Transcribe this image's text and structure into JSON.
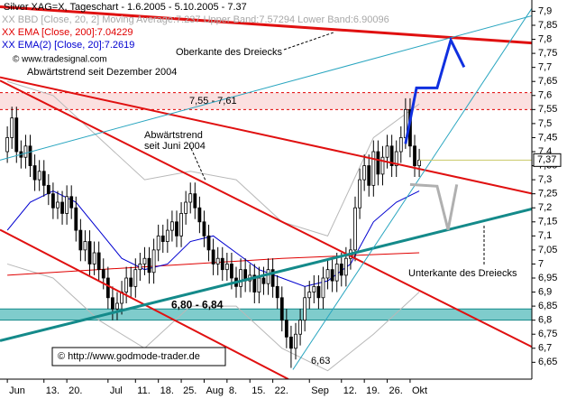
{
  "chart_data": {
    "type": "candlestick",
    "title": "Silver XAG=X, Tageschart - 1.6.2005 - 5.10.2005 - 7.37",
    "legend": [
      {
        "text": "XX BBD [Close, 20, 2] Moving Average:7.237 Upper Band:7.57294 Lower Band:6.90096",
        "color": "#a8a8a8"
      },
      {
        "text": "XX EMA [Close, 200]:7.04229",
        "color": "#e00000"
      },
      {
        "text": "XX EMA(2) [Close, 20]:7.2619",
        "color": "#0000d0"
      }
    ],
    "open": [
      7.4,
      7.45,
      7.52,
      7.4,
      7.38,
      7.42,
      7.35,
      7.3,
      7.33,
      7.28,
      7.25,
      7.2,
      7.22,
      7.18,
      7.24,
      7.2,
      7.12,
      7.05,
      7.08,
      7.0,
      7.04,
      6.98,
      6.95,
      6.88,
      6.84,
      6.86,
      6.9,
      6.95,
      6.92,
      6.98,
      7.0,
      7.02,
      6.97,
      7.05,
      7.1,
      7.08,
      7.12,
      7.15,
      7.1,
      7.18,
      7.22,
      7.25,
      7.2,
      7.15,
      7.1,
      7.05,
      7.0,
      7.02,
      6.98,
      7.0,
      6.95,
      6.92,
      6.98,
      6.94,
      6.96,
      6.9,
      6.95,
      6.93,
      6.98,
      6.92,
      6.88,
      6.8,
      6.74,
      6.7,
      6.75,
      6.8,
      6.88,
      6.9,
      6.92,
      6.88,
      6.95,
      6.98,
      6.94,
      7.0,
      6.96,
      7.02,
      7.05,
      7.2,
      7.3,
      7.35,
      7.28,
      7.4,
      7.32,
      7.38,
      7.42,
      7.35,
      7.4,
      7.45,
      7.55,
      7.42,
      7.35
    ],
    "high": [
      7.49,
      7.56,
      7.56,
      7.44,
      7.46,
      7.46,
      7.39,
      7.37,
      7.37,
      7.32,
      7.29,
      7.26,
      7.26,
      7.28,
      7.28,
      7.24,
      7.16,
      7.12,
      7.12,
      7.08,
      7.08,
      7.02,
      6.99,
      6.92,
      6.9,
      6.94,
      6.99,
      6.99,
      7.02,
      7.04,
      7.06,
      7.06,
      7.09,
      7.14,
      7.14,
      7.16,
      7.19,
      7.19,
      7.22,
      7.26,
      7.29,
      7.29,
      7.24,
      7.19,
      7.14,
      7.09,
      7.06,
      7.06,
      7.04,
      7.04,
      6.99,
      7.02,
      7.02,
      7.0,
      7.0,
      6.99,
      6.99,
      7.02,
      7.02,
      6.96,
      6.92,
      6.84,
      6.78,
      6.79,
      6.84,
      6.92,
      6.94,
      6.96,
      6.96,
      6.99,
      7.02,
      7.02,
      7.04,
      7.04,
      7.06,
      7.09,
      7.24,
      7.34,
      7.39,
      7.39,
      7.44,
      7.44,
      7.42,
      7.46,
      7.46,
      7.44,
      7.49,
      7.59,
      7.59,
      7.46,
      7.41
    ],
    "low": [
      7.36,
      7.41,
      7.36,
      7.34,
      7.34,
      7.31,
      7.26,
      7.26,
      7.24,
      7.21,
      7.16,
      7.16,
      7.14,
      7.14,
      7.16,
      7.08,
      7.01,
      7.01,
      6.96,
      6.96,
      6.94,
      6.91,
      6.84,
      6.8,
      6.8,
      6.82,
      6.86,
      6.88,
      6.88,
      6.94,
      6.96,
      6.93,
      6.93,
      7.01,
      7.04,
      7.04,
      7.08,
      7.06,
      7.06,
      7.14,
      7.18,
      7.16,
      7.11,
      7.06,
      7.01,
      6.96,
      6.96,
      6.94,
      6.94,
      6.91,
      6.88,
      6.88,
      6.9,
      6.9,
      6.86,
      6.86,
      6.89,
      6.89,
      6.88,
      6.84,
      6.76,
      6.7,
      6.63,
      6.66,
      6.71,
      6.76,
      6.84,
      6.86,
      6.84,
      6.84,
      6.91,
      6.9,
      6.9,
      6.92,
      6.92,
      6.98,
      7.01,
      7.16,
      7.26,
      7.24,
      7.24,
      7.28,
      7.28,
      7.34,
      7.31,
      7.31,
      7.36,
      7.41,
      7.38,
      7.31,
      7.31
    ],
    "close": [
      7.45,
      7.52,
      7.4,
      7.38,
      7.42,
      7.35,
      7.3,
      7.33,
      7.28,
      7.25,
      7.2,
      7.22,
      7.18,
      7.24,
      7.2,
      7.12,
      7.05,
      7.08,
      7.0,
      7.04,
      6.98,
      6.95,
      6.88,
      6.84,
      6.86,
      6.9,
      6.95,
      6.92,
      6.98,
      7.0,
      7.02,
      6.97,
      7.05,
      7.1,
      7.08,
      7.12,
      7.15,
      7.1,
      7.18,
      7.22,
      7.25,
      7.2,
      7.15,
      7.1,
      7.05,
      7.0,
      7.02,
      6.98,
      7.0,
      6.95,
      6.92,
      6.98,
      6.94,
      6.96,
      6.9,
      6.95,
      6.93,
      6.98,
      6.92,
      6.88,
      6.8,
      6.74,
      6.7,
      6.75,
      6.8,
      6.88,
      6.9,
      6.92,
      6.88,
      6.95,
      6.98,
      6.94,
      7.0,
      6.96,
      7.02,
      7.05,
      7.2,
      7.3,
      7.35,
      7.28,
      7.4,
      7.32,
      7.38,
      7.42,
      7.35,
      7.4,
      7.45,
      7.55,
      7.42,
      7.35,
      7.37
    ],
    "indicators": [
      {
        "color": "#b8b8b8",
        "x": [
          0,
          10,
          20,
          30,
          40,
          50,
          60,
          70,
          80,
          90
        ],
        "values": [
          7.65,
          7.6,
          7.45,
          7.3,
          7.33,
          7.3,
          7.15,
          7.1,
          7.45,
          7.57
        ]
      },
      {
        "color": "#b8b8b8",
        "x": [
          0,
          10,
          20,
          30,
          40,
          50,
          60,
          70,
          80,
          90
        ],
        "values": [
          7.0,
          6.95,
          6.8,
          6.7,
          6.85,
          6.85,
          6.7,
          6.62,
          6.75,
          6.9
        ]
      },
      {
        "color": "#e00000",
        "x": [
          0,
          20,
          40,
          60,
          90
        ],
        "values": [
          6.96,
          6.98,
          7.0,
          7.02,
          7.04
        ]
      },
      {
        "color": "#0000d0",
        "x": [
          0,
          5,
          10,
          15,
          20,
          25,
          30,
          35,
          40,
          45,
          50,
          55,
          60,
          65,
          70,
          75,
          80,
          85,
          90
        ],
        "values": [
          7.12,
          7.22,
          7.26,
          7.22,
          7.12,
          7.02,
          6.98,
          7.0,
          7.08,
          7.1,
          7.04,
          6.98,
          6.95,
          6.92,
          6.94,
          7.0,
          7.15,
          7.22,
          7.26
        ]
      }
    ],
    "zones": [
      {
        "range": [
          7.55,
          7.61
        ],
        "color": "#fbe0e0",
        "label": "7,55 - 7,61"
      },
      {
        "range": [
          6.8,
          6.84
        ],
        "color": "#7fcccc",
        "label": "6,80 - 6,84"
      }
    ],
    "trendlines": [
      {
        "color": "#e01010",
        "width": 3,
        "x": [
          -1.6,
          114.6
        ],
        "y": [
          7.916,
          7.787
        ]
      },
      {
        "color": "#e01010",
        "width": 2,
        "x": [
          -1.6,
          114.6
        ],
        "y": [
          7.665,
          7.251
        ]
      },
      {
        "color": "#e01010",
        "width": 2,
        "x": [
          -1.6,
          114.6
        ],
        "y": [
          7.653,
          6.705
        ]
      },
      {
        "color": "#e01010",
        "width": 2,
        "x": [
          -1.6,
          61.4
        ],
        "y": [
          7.122,
          6.59
        ]
      },
      {
        "color": "#148a8a",
        "width": 3,
        "x": [
          -1.6,
          114.6
        ],
        "y": [
          6.727,
          7.196
        ]
      },
      {
        "color": "#2aa6c0",
        "width": 1,
        "x": [
          -1.6,
          114.6
        ],
        "y": [
          7.37,
          7.884
        ]
      },
      {
        "color": "#2aa6c0",
        "width": 1,
        "x": [
          62.4,
          114.6
        ],
        "y": [
          6.624,
          7.91
        ]
      }
    ],
    "projections": [
      {
        "color": "#1030e0",
        "x": [
          87.0,
          89.4,
          93.9,
          96.9,
          99.8
        ],
        "y": [
          7.428,
          7.627,
          7.627,
          7.797,
          7.701
        ]
      },
      {
        "color": "#b0b0b0",
        "x": [
          88.0,
          93.9,
          96.3,
          98.2
        ],
        "y": [
          7.283,
          7.277,
          7.122,
          7.283
        ]
      }
    ],
    "last_price": {
      "value": 7.37,
      "label": "7,37"
    },
    "annotations": [
      "Oberkante des Dreiecks",
      "Abwärtstrend seit Dezember 2004",
      "© www.tradesignal.com",
      "Abwärtstrend",
      "seit Juni 2004",
      "Unterkante des Dreiecks",
      "6,63",
      "© http://www.godmode-trader.de"
    ],
    "xlim": [
      -1.6,
      114.6
    ],
    "ylim": [
      6.59,
      7.94
    ],
    "xticks": [
      {
        "value": 0,
        "label": "Jun"
      },
      {
        "value": 8,
        "label": "13."
      },
      {
        "value": 13,
        "label": "20."
      },
      {
        "value": 22,
        "label": "Jul"
      },
      {
        "value": 28,
        "label": "11."
      },
      {
        "value": 33,
        "label": "18."
      },
      {
        "value": 38,
        "label": "25."
      },
      {
        "value": 43,
        "label": "Aug"
      },
      {
        "value": 48,
        "label": "8."
      },
      {
        "value": 53,
        "label": "15."
      },
      {
        "value": 58,
        "label": "22."
      },
      {
        "value": 66,
        "label": "Sep"
      },
      {
        "value": 73,
        "label": "12."
      },
      {
        "value": 78,
        "label": "19."
      },
      {
        "value": 83,
        "label": "26."
      },
      {
        "value": 88,
        "label": "Okt"
      }
    ],
    "yticks": [
      {
        "value": 7.9,
        "label": "7,9"
      },
      {
        "value": 7.85,
        "label": "7,85"
      },
      {
        "value": 7.8,
        "label": "7,8"
      },
      {
        "value": 7.75,
        "label": "7,75"
      },
      {
        "value": 7.7,
        "label": "7,7"
      },
      {
        "value": 7.65,
        "label": "7,65"
      },
      {
        "value": 7.6,
        "label": "7,6"
      },
      {
        "value": 7.55,
        "label": "7,55"
      },
      {
        "value": 7.5,
        "label": "7,5"
      },
      {
        "value": 7.45,
        "label": "7,45"
      },
      {
        "value": 7.4,
        "label": "7,4"
      },
      {
        "value": 7.35,
        "label": "7,35"
      },
      {
        "value": 7.3,
        "label": "7,3"
      },
      {
        "value": 7.25,
        "label": "7,25"
      },
      {
        "value": 7.2,
        "label": "7,2"
      },
      {
        "value": 7.15,
        "label": "7,15"
      },
      {
        "value": 7.1,
        "label": "7,1"
      },
      {
        "value": 7.05,
        "label": "7,05"
      },
      7,
      {
        "value": 6.95,
        "label": "6,95"
      },
      {
        "value": 6.9,
        "label": "6,9"
      },
      {
        "value": 6.85,
        "label": "6,85"
      },
      {
        "value": 6.8,
        "label": "6,8"
      },
      {
        "value": 6.75,
        "label": "6,75"
      },
      {
        "value": 6.7,
        "label": "6,7"
      },
      {
        "value": 6.65,
        "label": "6,65"
      }
    ],
    "up_color": "#ffffff",
    "down_color": "#000000"
  }
}
